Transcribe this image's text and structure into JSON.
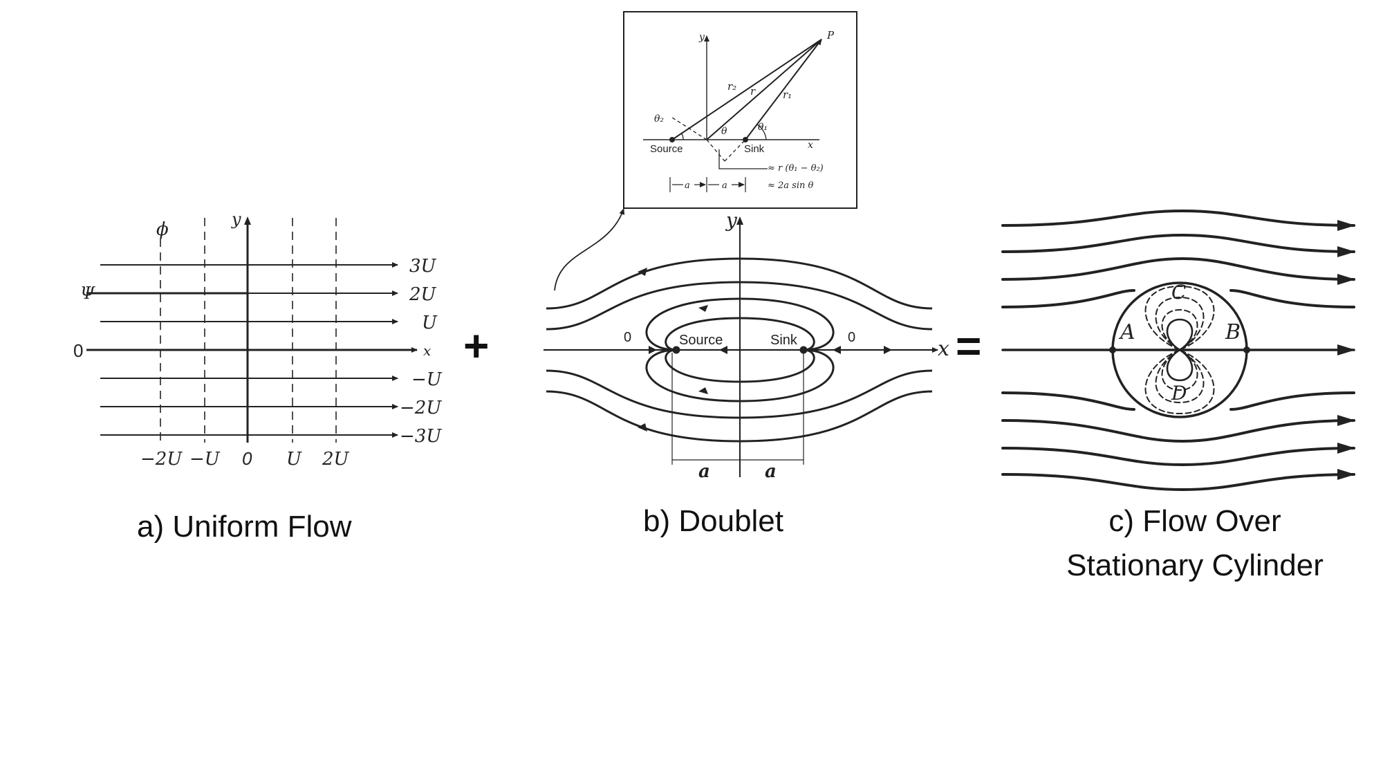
{
  "panel_a": {
    "caption": "a) Uniform Flow",
    "phi_label": "ϕ",
    "psi_label": "Ψ",
    "y_label": "y",
    "x_label": "x",
    "zero_label": "0",
    "right_labels": [
      "3U",
      "2U",
      "U",
      "x",
      "−U",
      "−2U",
      "−3U"
    ],
    "bottom_labels": [
      "−2U",
      "−U",
      "0",
      "U",
      "2U"
    ]
  },
  "plus": "+",
  "equals": "=",
  "panel_b": {
    "caption": "b) Doublet",
    "y_label": "y",
    "x_label": "x",
    "source_label": "Source",
    "sink_label": "Sink",
    "zero_left": "0",
    "zero_right": "0",
    "a_left": "a",
    "a_right": "a"
  },
  "inset": {
    "p_label": "P",
    "y_label": "y",
    "x_label": "x",
    "r1": "r₁",
    "r2": "r₂",
    "r": "r",
    "theta": "θ",
    "theta1": "θ₁",
    "theta2": "θ₂",
    "source": "Source",
    "sink": "Sink",
    "approx1": "≈ r (θ₁ − θ₂)",
    "approx2": "≈ 2a sin θ",
    "a1": "a",
    "a2": "a"
  },
  "panel_c": {
    "caption_line1": "c) Flow Over",
    "caption_line2": "Stationary Cylinder",
    "point_a": "A",
    "point_b": "B",
    "point_c": "C",
    "point_d": "D"
  }
}
